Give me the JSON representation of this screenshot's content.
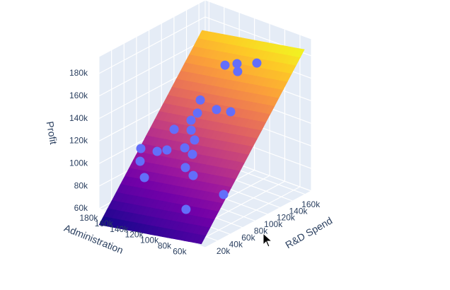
{
  "chart_data": {
    "type": "scatter3d",
    "xaxis_title": "R&D Spend",
    "yaxis_title": "Administration",
    "zaxis_title": "Profit",
    "xlim": [
      0,
      170000
    ],
    "xticks": [
      {
        "value": 20000,
        "label": "20k"
      },
      {
        "value": 40000,
        "label": "40k"
      },
      {
        "value": 60000,
        "label": "60k"
      },
      {
        "value": 80000,
        "label": "80k"
      },
      {
        "value": 100000,
        "label": "100k"
      },
      {
        "value": 120000,
        "label": "120k"
      },
      {
        "value": 140000,
        "label": "140k"
      },
      {
        "value": 160000,
        "label": "160k"
      }
    ],
    "ylim": [
      45000,
      185000
    ],
    "yticks": [
      {
        "value": 60000,
        "label": "60k"
      },
      {
        "value": 80000,
        "label": "80k"
      },
      {
        "value": 100000,
        "label": "100k"
      },
      {
        "value": 120000,
        "label": "120k"
      },
      {
        "value": 140000,
        "label": "140k"
      },
      {
        "value": 160000,
        "label": "160k"
      },
      {
        "value": 180000,
        "label": "180k"
      }
    ],
    "zlim": [
      60000,
      195000
    ],
    "zticks": [
      {
        "value": 60000,
        "label": "60k"
      },
      {
        "value": 80000,
        "label": "80k"
      },
      {
        "value": 100000,
        "label": "100k"
      },
      {
        "value": 120000,
        "label": "120k"
      },
      {
        "value": 140000,
        "label": "140k"
      },
      {
        "value": 160000,
        "label": "160k"
      },
      {
        "value": 180000,
        "label": "180k"
      }
    ],
    "series": [
      {
        "color": "#636efa",
        "x": [
          73000,
          85500,
          101600,
          88000,
          65000,
          60500,
          67900,
          53900,
          47000,
          37400,
          33700,
          36200,
          1900,
          18500,
          33500,
          29900,
          10900,
          25200,
          4800,
          28200,
          34200,
          5400,
          11600
        ],
        "y": [
          79000,
          73400,
          60500,
          74600,
          105000,
          79900,
          67300,
          99600,
          102400,
          94400,
          113700,
          88800,
          131500,
          110700,
          89400,
          96600,
          139800,
          91900,
          129100,
          84100,
          48900,
          74700,
          117900
        ],
        "z": [
          192000,
          191000,
          190000,
          183000,
          157000,
          156000,
          155000,
          150000,
          145000,
          141000,
          138000,
          134000,
          126000,
          125000,
          122000,
          127000,
          110000,
          112000,
          100000,
          106000,
          96000,
          85000,
          124000
        ]
      }
    ],
    "surface": {
      "x": [
        0,
        41250,
        82500,
        123750,
        165000
      ],
      "y": [
        50000,
        83750,
        117500,
        151250,
        185000
      ],
      "z": [
        [
          62000,
          92900,
          123900,
          154800,
          185800
        ],
        [
          57900,
          88800,
          119800,
          150700,
          181700
        ],
        [
          53800,
          84700,
          115700,
          146600,
          177600
        ],
        [
          49800,
          80700,
          111600,
          142600,
          173600
        ],
        [
          45700,
          76600,
          107600,
          138500,
          169500
        ]
      ],
      "colorscale": [
        "#0d0887",
        "#46039f",
        "#7201a8",
        "#9c179e",
        "#bd3786",
        "#d8576b",
        "#ed7953",
        "#fb9f3a",
        "#fdca26",
        "#f0f921"
      ]
    }
  }
}
